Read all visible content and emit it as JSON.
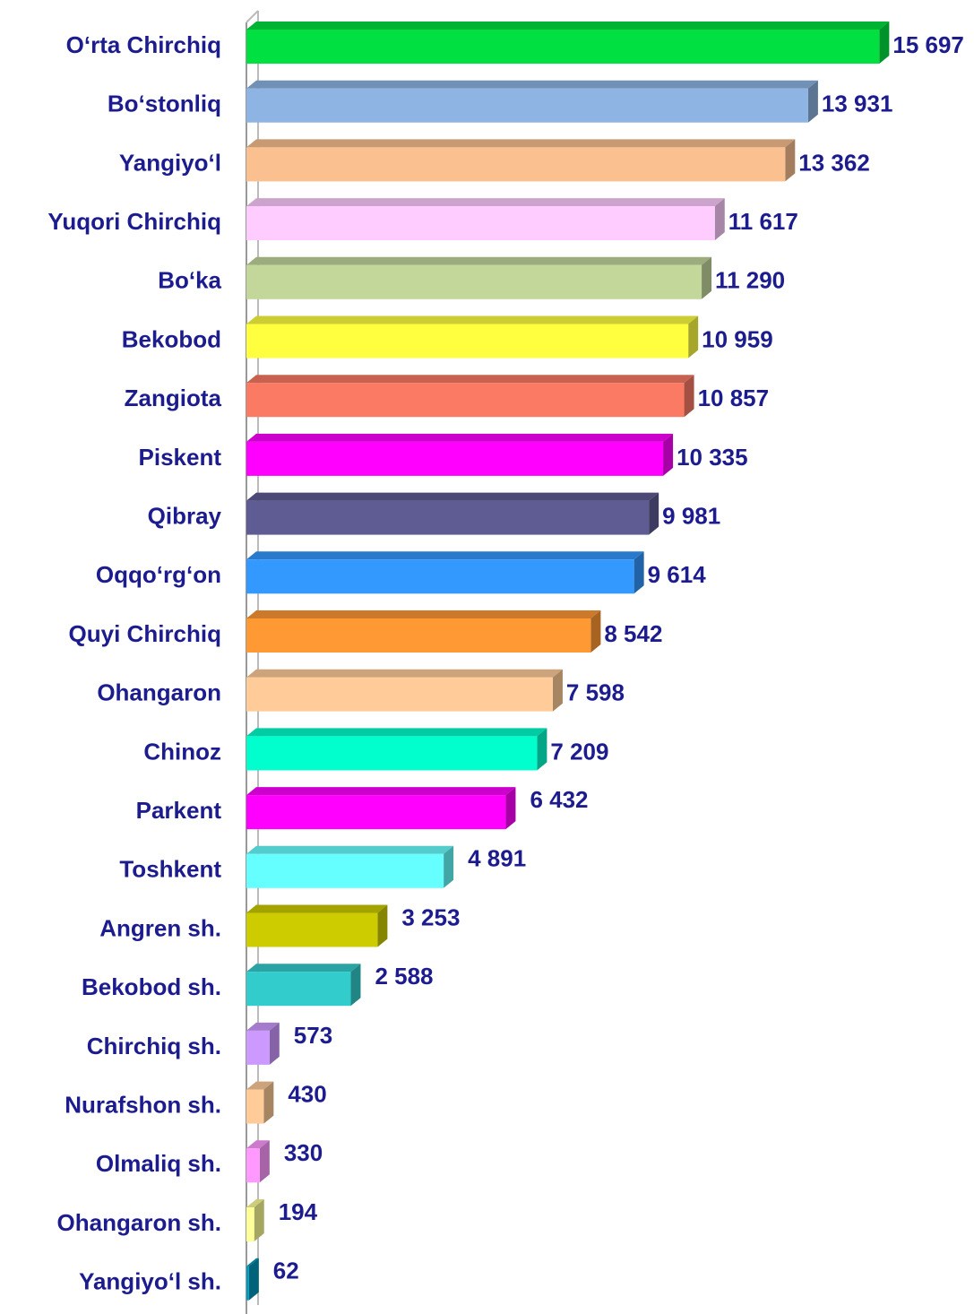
{
  "chart_data": {
    "type": "bar",
    "orientation": "horizontal",
    "categories": [
      "O‘rta Chirchiq",
      "Bo‘stonliq",
      "Yangiyo‘l",
      "Yuqori Chirchiq",
      "Bo‘ka",
      "Bekobod",
      "Zangiota",
      "Piskent",
      "Qibray",
      "Oqqo‘rg‘on",
      "Quyi Chirchiq",
      "Ohangaron",
      "Chinoz",
      "Parkent",
      "Toshkent",
      "Angren sh.",
      "Bekobod sh.",
      "Chirchiq sh.",
      "Nurafshon sh.",
      "Olmaliq sh.",
      "Ohangaron sh.",
      "Yangiyo‘l sh."
    ],
    "values": [
      15697,
      13931,
      13362,
      11617,
      11290,
      10959,
      10857,
      10335,
      9981,
      9614,
      8542,
      7598,
      7209,
      6432,
      4891,
      3253,
      2588,
      573,
      430,
      330,
      194,
      62
    ],
    "value_labels": [
      "15 697",
      "13 931",
      "13 362",
      "11 617",
      "11 290",
      "10 959",
      "10 857",
      "10 335",
      "9 981",
      "9 614",
      "8 542",
      "7 598",
      "7 209",
      "6 432",
      "4 891",
      "3 253",
      "2 588",
      "573",
      "430",
      "330",
      "194",
      "62"
    ],
    "colors": [
      "#00e040",
      "#8db4e2",
      "#fac090",
      "#ffccff",
      "#c4d79b",
      "#ffff40",
      "#fa7a64",
      "#ff00ff",
      "#5f5b93",
      "#3399ff",
      "#ff9933",
      "#ffcc99",
      "#00ffcc",
      "#ff00ff",
      "#66ffff",
      "#cccc00",
      "#33cccc",
      "#cc99ff",
      "#ffcc99",
      "#ff99ff",
      "#ffff99",
      "#0099bb"
    ],
    "xlim": [
      0,
      16000
    ]
  }
}
